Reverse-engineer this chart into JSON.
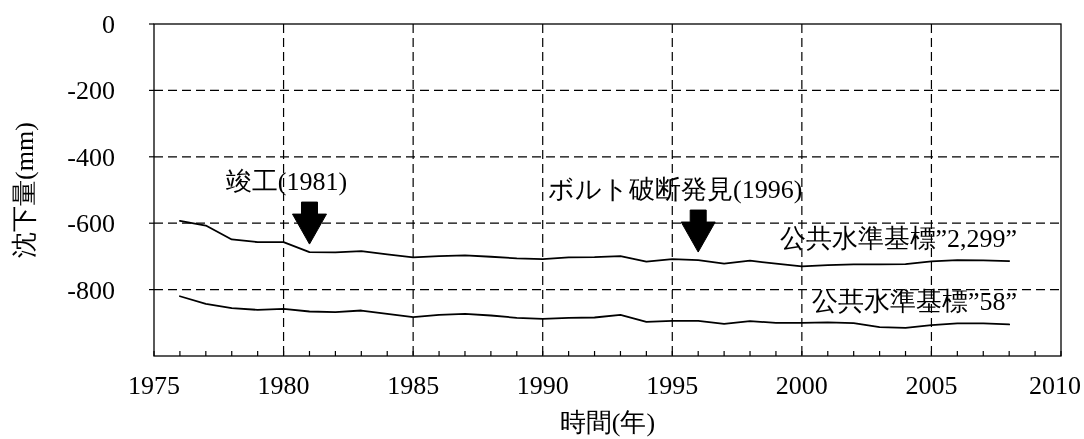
{
  "chart_data": {
    "type": "line",
    "xlabel": "時間(年)",
    "ylabel": "沈下量(mm)",
    "x": [
      1976,
      1977,
      1978,
      1979,
      1980,
      1981,
      1982,
      1983,
      1984,
      1985,
      1986,
      1987,
      1988,
      1989,
      1990,
      1991,
      1992,
      1993,
      1994,
      1995,
      1996,
      1997,
      1998,
      1999,
      2000,
      2001,
      2002,
      2003,
      2004,
      2005,
      2006,
      2007,
      2008
    ],
    "series": [
      {
        "name": "公共水準基標”2,299”",
        "color": "#000000",
        "values": [
          -593,
          -607,
          -649,
          -657,
          -657,
          -687,
          -688,
          -684,
          -694,
          -703,
          -699,
          -697,
          -701,
          -706,
          -708,
          -703,
          -702,
          -699,
          -716,
          -708,
          -711,
          -722,
          -713,
          -722,
          -730,
          -726,
          -724,
          -724,
          -723,
          -715,
          -711,
          -712,
          -714
        ]
      },
      {
        "name": "公共水準基標”58”",
        "color": "#000000",
        "values": [
          -820,
          -843,
          -856,
          -861,
          -858,
          -866,
          -868,
          -863,
          -873,
          -883,
          -876,
          -873,
          -878,
          -885,
          -888,
          -885,
          -884,
          -876,
          -897,
          -894,
          -894,
          -903,
          -895,
          -900,
          -900,
          -899,
          -901,
          -913,
          -915,
          -907,
          -902,
          -902,
          -905
        ]
      }
    ],
    "xlim": [
      1975,
      2010
    ],
    "xticks": [
      1975,
      {
        "value": 1976,
        "label": null
      },
      {
        "value": 1977,
        "label": null
      },
      {
        "value": 1978,
        "label": null
      },
      {
        "value": 1979,
        "label": null
      },
      1980,
      {
        "value": 1981,
        "label": null
      },
      {
        "value": 1982,
        "label": null
      },
      {
        "value": 1983,
        "label": null
      },
      {
        "value": 1984,
        "label": null
      },
      1985,
      {
        "value": 1986,
        "label": null
      },
      {
        "value": 1987,
        "label": null
      },
      {
        "value": 1988,
        "label": null
      },
      {
        "value": 1989,
        "label": null
      },
      1990,
      {
        "value": 1991,
        "label": null
      },
      {
        "value": 1992,
        "label": null
      },
      {
        "value": 1993,
        "label": null
      },
      {
        "value": 1994,
        "label": null
      },
      1995,
      {
        "value": 1996,
        "label": null
      },
      {
        "value": 1997,
        "label": null
      },
      {
        "value": 1998,
        "label": null
      },
      {
        "value": 1999,
        "label": null
      },
      2000,
      {
        "value": 2001,
        "label": null
      },
      {
        "value": 2002,
        "label": null
      },
      {
        "value": 2003,
        "label": null
      },
      {
        "value": 2004,
        "label": null
      },
      2005,
      {
        "value": 2006,
        "label": null
      },
      {
        "value": 2007,
        "label": null
      },
      {
        "value": 2008,
        "label": null
      },
      {
        "value": 2009,
        "label": null
      },
      2010
    ],
    "ylim": [
      -1000,
      0
    ],
    "yticks": [
      0,
      -200,
      -400,
      -600,
      -800
    ],
    "grid": true,
    "annotations": [
      {
        "text": "竣工(1981)",
        "x": 1981,
        "y": -687
      },
      {
        "text": "ボルト破断発見(1996)",
        "x": 1996,
        "y": -711
      }
    ]
  }
}
